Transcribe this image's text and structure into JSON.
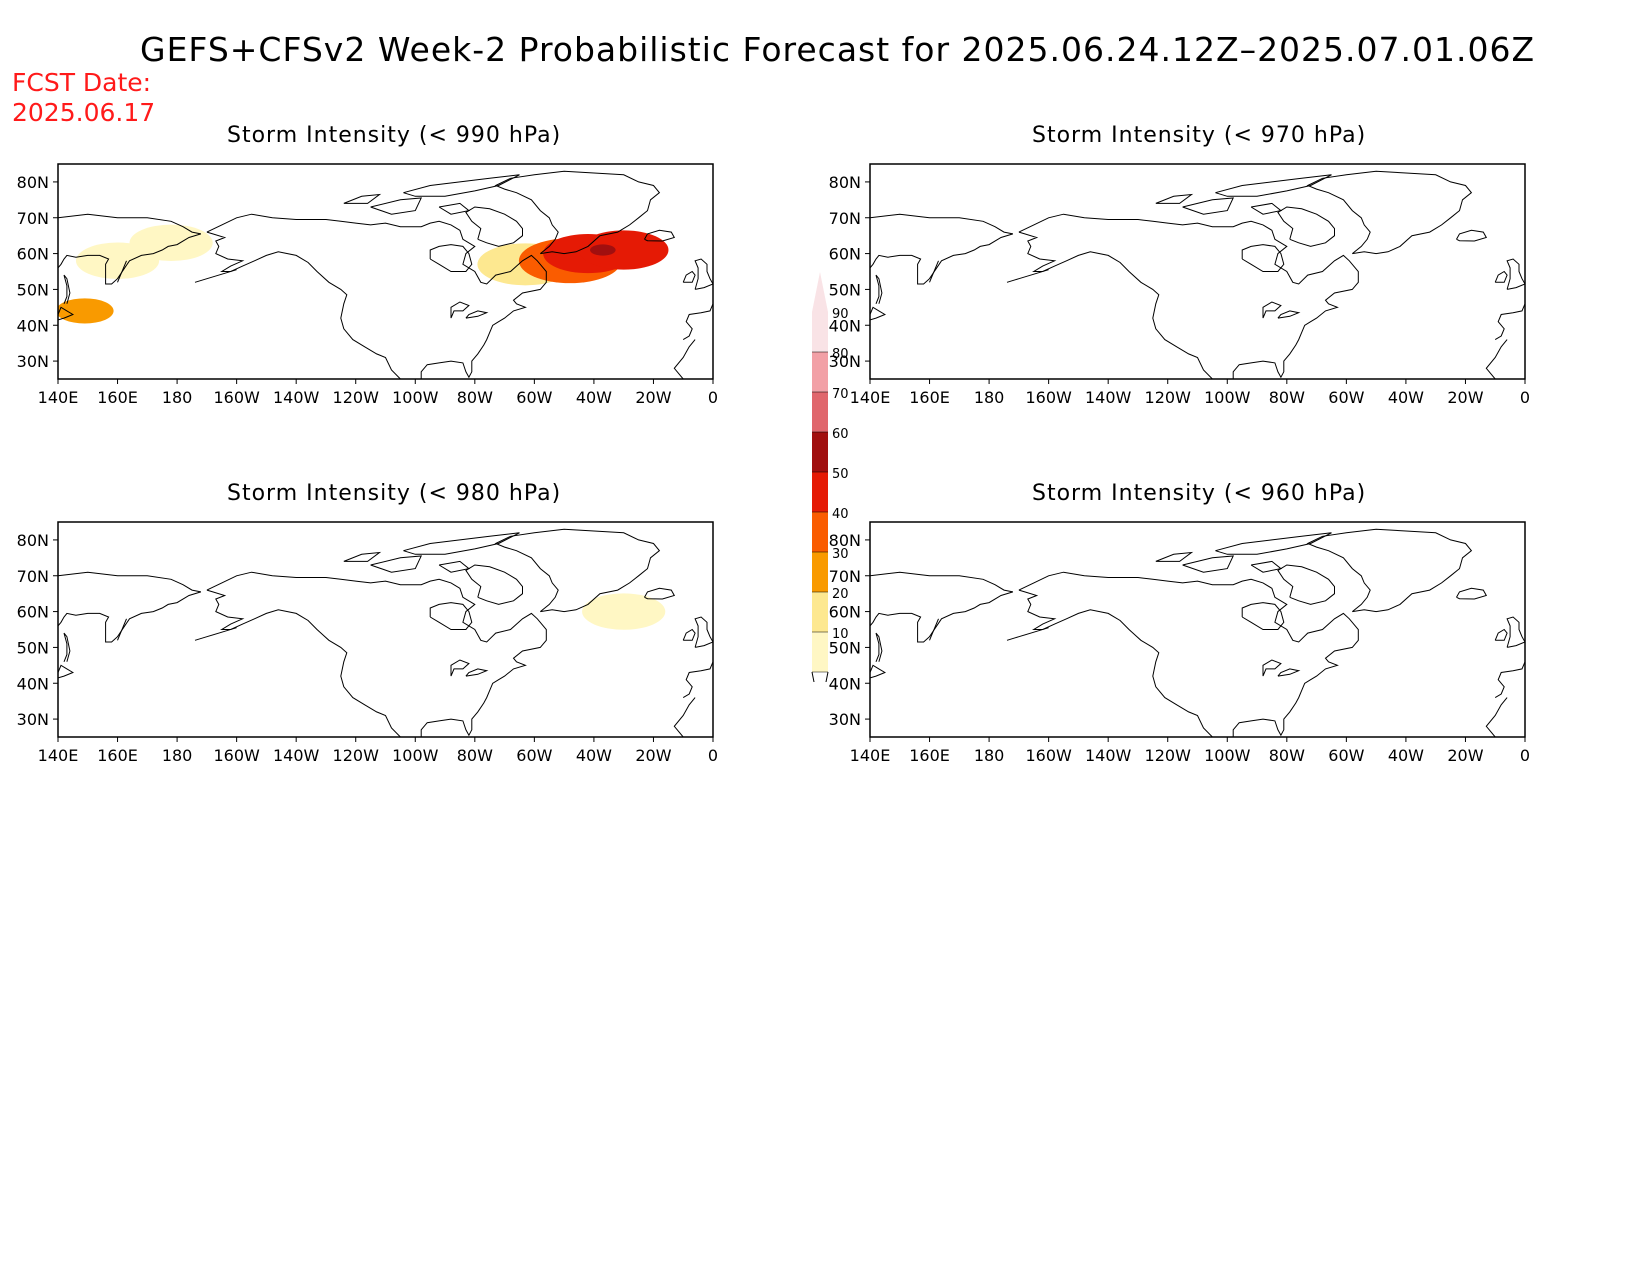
{
  "header": {
    "title": "GEFS+CFSv2 Week-2 Probabilistic Forecast for 2025.06.24.12Z–2025.07.01.06Z",
    "fcst_label": "FCST Date:",
    "fcst_date": "2025.06.17"
  },
  "axes": {
    "lon_labels": [
      "140E",
      "160E",
      "180",
      "160W",
      "140W",
      "120W",
      "100W",
      "80W",
      "60W",
      "40W",
      "20W",
      "0"
    ],
    "lat_labels": [
      "80N",
      "70N",
      "60N",
      "50N",
      "40N",
      "30N"
    ],
    "lon_range_deg_east": [
      140,
      360
    ],
    "lat_range_deg_north": [
      25,
      85
    ]
  },
  "panels": [
    {
      "id": "p990",
      "title": "Storm Intensity (< 990 hPa)",
      "has_data": true
    },
    {
      "id": "p970",
      "title": "Storm Intensity (< 970 hPa)",
      "has_data": false
    },
    {
      "id": "p980",
      "title": "Storm Intensity (< 980 hPa)",
      "has_data": true
    },
    {
      "id": "p960",
      "title": "Storm Intensity (< 960 hPa)",
      "has_data": false
    }
  ],
  "colorbar": {
    "labels": [
      "90",
      "80",
      "70",
      "60",
      "50",
      "40",
      "30",
      "20",
      "10"
    ],
    "colors": [
      "#f9e3e6",
      "#f2a0a6",
      "#e0666c",
      "#a10f0f",
      "#e51a05",
      "#fa5c00",
      "#f99a00",
      "#fde890",
      "#fff7c4"
    ]
  },
  "probability_areas": {
    "p990": [
      {
        "lon": 323,
        "lat": 61,
        "prob": 60
      },
      {
        "lon": 318,
        "lat": 60,
        "prob": 50
      },
      {
        "lon": 330,
        "lat": 61,
        "prob": 50
      },
      {
        "lon": 312,
        "lat": 58,
        "prob": 40
      },
      {
        "lon": 306,
        "lat": 57,
        "prob": 30
      },
      {
        "lon": 297,
        "lat": 57,
        "prob": 20
      },
      {
        "lon": 160,
        "lat": 58,
        "prob": 10
      },
      {
        "lon": 149,
        "lat": 44,
        "prob": 30
      },
      {
        "lon": 178,
        "lat": 63,
        "prob": 10
      }
    ],
    "p980": [
      {
        "lon": 330,
        "lat": 60,
        "prob": 10
      }
    ]
  }
}
